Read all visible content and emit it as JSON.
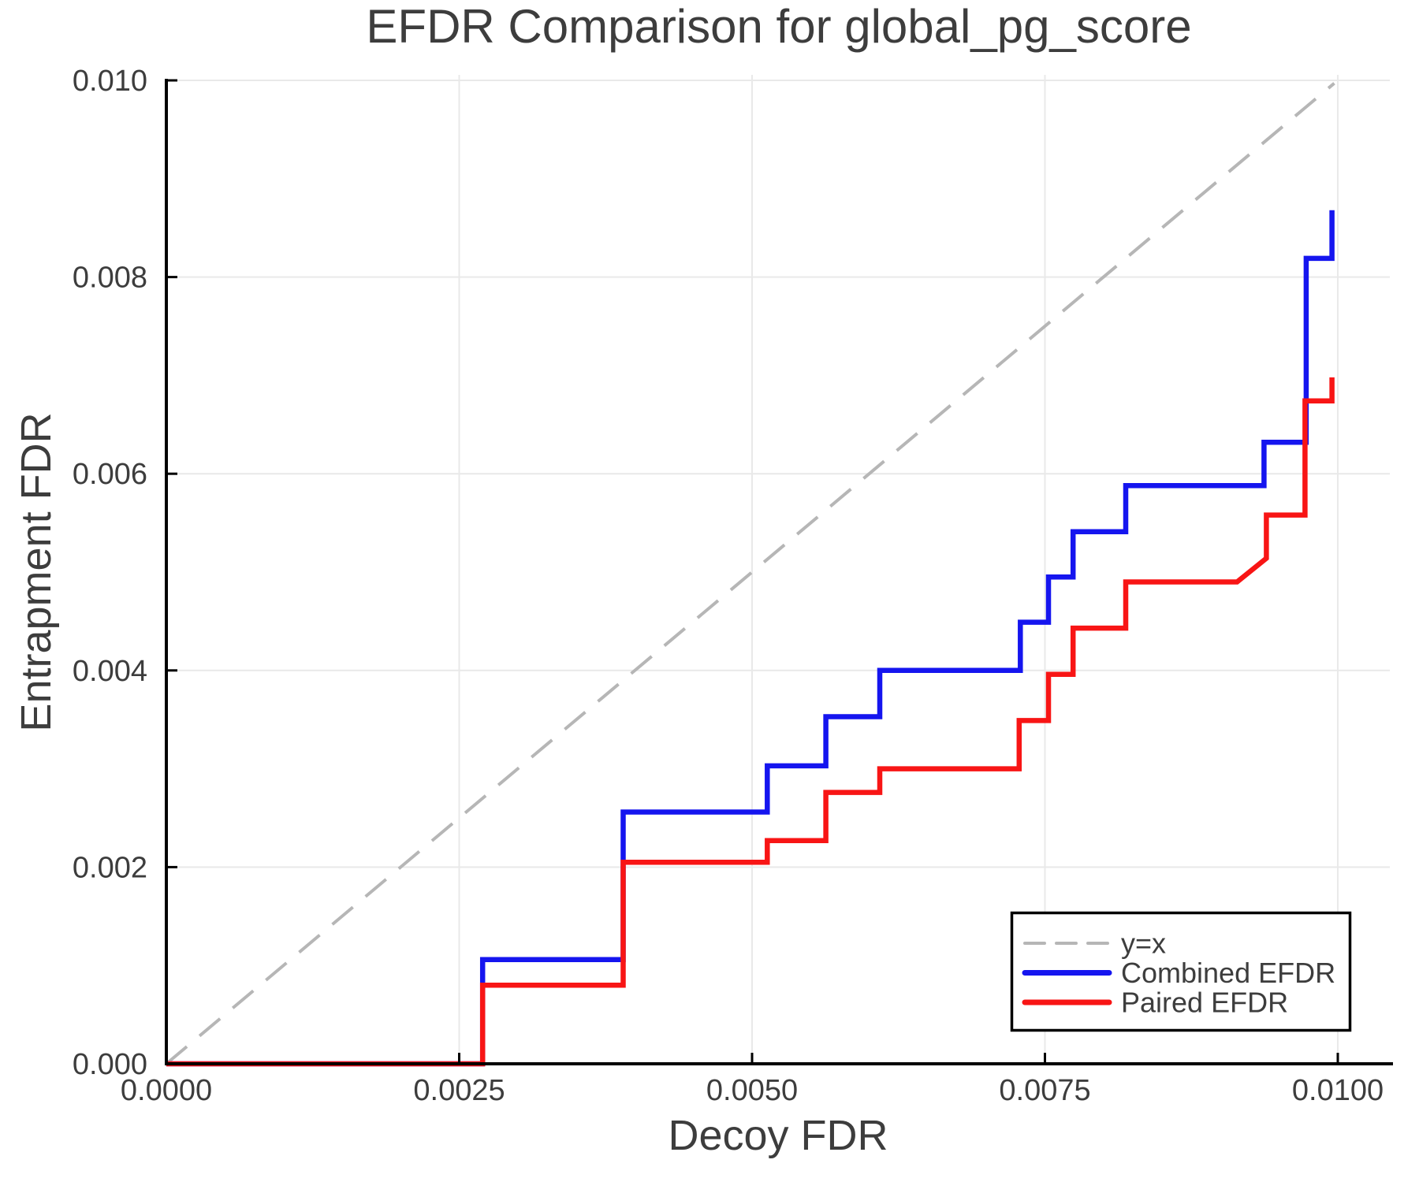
{
  "title": "EFDR Comparison for global_pg_score",
  "chart_data": {
    "type": "line",
    "title": "EFDR Comparison for global_pg_score",
    "xlabel": "Decoy FDR",
    "ylabel": "Entrapment FDR",
    "xlim": [
      0.0,
      0.0104
    ],
    "ylim": [
      0.0,
      0.0101
    ],
    "grid": true,
    "x_ticks": {
      "values": [
        0.0,
        0.0025,
        0.005,
        0.0075,
        0.01
      ],
      "labels": [
        "0.0000",
        "0.0025",
        "0.0050",
        "0.0075",
        "0.0100"
      ]
    },
    "y_ticks": {
      "values": [
        0.0,
        0.002,
        0.004,
        0.006,
        0.008,
        0.01
      ],
      "labels": [
        "0.000",
        "0.002",
        "0.004",
        "0.006",
        "0.008",
        "0.010"
      ]
    },
    "series": [
      {
        "name": "y=x",
        "style": "dashed",
        "color": "#b6b6b6",
        "width": 4,
        "points": [
          [
            0.0,
            0.0
          ],
          [
            0.00997,
            0.00997
          ]
        ]
      },
      {
        "name": "Combined EFDR",
        "style": "solid",
        "color": "#1515ef",
        "width": 6.5,
        "points": [
          [
            0.0,
            0.0
          ],
          [
            0.0027,
            0.0
          ],
          [
            0.0027,
            0.00106
          ],
          [
            0.0039,
            0.00106
          ],
          [
            0.0039,
            0.00256
          ],
          [
            0.00513,
            0.00256
          ],
          [
            0.00513,
            0.00303
          ],
          [
            0.00563,
            0.00303
          ],
          [
            0.00563,
            0.00353
          ],
          [
            0.00609,
            0.00353
          ],
          [
            0.00609,
            0.004
          ],
          [
            0.00729,
            0.004
          ],
          [
            0.00729,
            0.00449
          ],
          [
            0.00753,
            0.00449
          ],
          [
            0.00753,
            0.00495
          ],
          [
            0.00774,
            0.00495
          ],
          [
            0.00774,
            0.00541
          ],
          [
            0.00819,
            0.00541
          ],
          [
            0.00819,
            0.00588
          ],
          [
            0.00937,
            0.00588
          ],
          [
            0.00937,
            0.00632
          ],
          [
            0.00973,
            0.00632
          ],
          [
            0.00973,
            0.00819
          ],
          [
            0.00995,
            0.00819
          ],
          [
            0.00995,
            0.00868
          ]
        ]
      },
      {
        "name": "Paired EFDR",
        "style": "solid",
        "color": "#f81515",
        "width": 6.5,
        "points": [
          [
            0.0,
            0.0
          ],
          [
            0.0027,
            0.0
          ],
          [
            0.0027,
            0.0008
          ],
          [
            0.0039,
            0.0008
          ],
          [
            0.0039,
            0.00205
          ],
          [
            0.00513,
            0.00205
          ],
          [
            0.00513,
            0.00227
          ],
          [
            0.00563,
            0.00227
          ],
          [
            0.00563,
            0.00276
          ],
          [
            0.00609,
            0.00276
          ],
          [
            0.00609,
            0.003
          ],
          [
            0.00728,
            0.003
          ],
          [
            0.00728,
            0.00349
          ],
          [
            0.00753,
            0.00349
          ],
          [
            0.00753,
            0.00396
          ],
          [
            0.00774,
            0.00396
          ],
          [
            0.00774,
            0.00443
          ],
          [
            0.00819,
            0.00443
          ],
          [
            0.00819,
            0.0049
          ],
          [
            0.00914,
            0.0049
          ],
          [
            0.00939,
            0.00514
          ],
          [
            0.00939,
            0.00558
          ],
          [
            0.00972,
            0.00558
          ],
          [
            0.00972,
            0.00674
          ],
          [
            0.00995,
            0.00674
          ],
          [
            0.00995,
            0.00698
          ]
        ]
      }
    ],
    "legend": {
      "position": "lower right",
      "entries": [
        {
          "label": "y=x"
        },
        {
          "label": "Combined EFDR"
        },
        {
          "label": "Paired EFDR"
        }
      ]
    }
  },
  "colors": {
    "text": "#3d3d3d",
    "grid": "#e9e9e9",
    "spine": "#000000",
    "background": "#ffffff",
    "identity": "#b6b6b6",
    "combined": "#1515ef",
    "paired": "#f81515"
  }
}
